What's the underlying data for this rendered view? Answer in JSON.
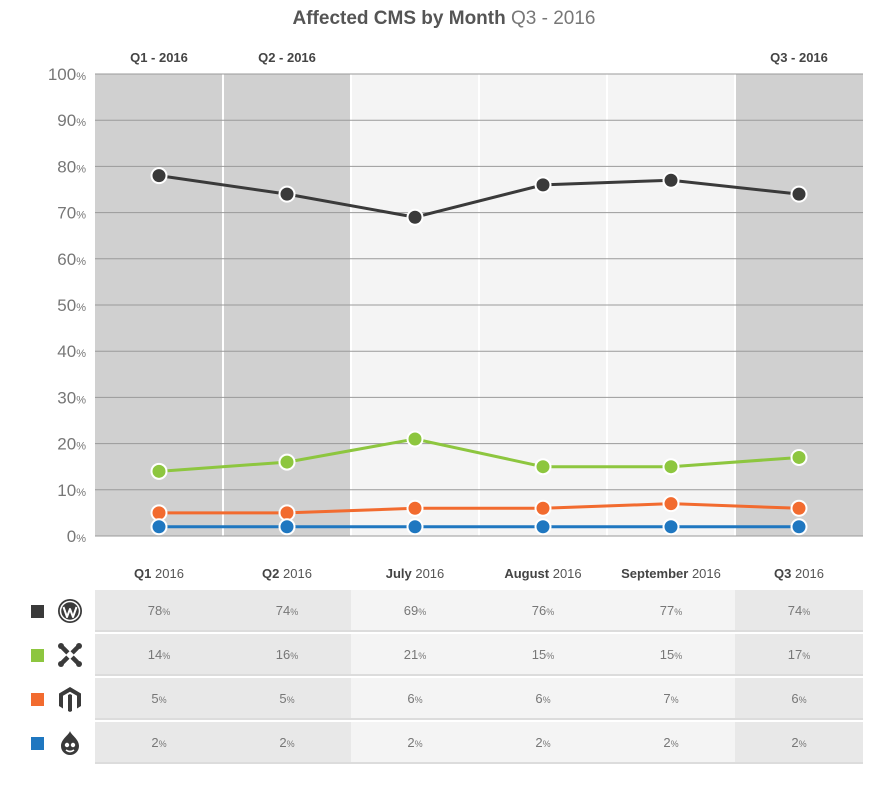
{
  "title": {
    "main": "Affected CMS by Month",
    "sub": "Q3 - 2016"
  },
  "chart_data": {
    "type": "line",
    "title": "Affected CMS by Month Q3 - 2016",
    "categories": [
      "Q1 - 2016",
      "Q2 - 2016",
      "July 2016",
      "August 2016",
      "September 2016",
      "Q3 - 2016"
    ],
    "band_labels": [
      "Q1 - 2016",
      "Q2 - 2016",
      "",
      "",
      "",
      "Q3 - 2016"
    ],
    "ylim": [
      0,
      100
    ],
    "y_ticks": [
      0,
      10,
      20,
      30,
      40,
      50,
      60,
      70,
      80,
      90,
      100
    ],
    "y_unit": "%",
    "grid": true,
    "series": [
      {
        "id": "wordpress",
        "color": "#3a3a3a",
        "icon": "wordpress-icon",
        "values": [
          78,
          74,
          69,
          76,
          77,
          74
        ]
      },
      {
        "id": "joomla",
        "color": "#8dc63f",
        "icon": "joomla-icon",
        "values": [
          14,
          16,
          21,
          15,
          15,
          17
        ]
      },
      {
        "id": "magento",
        "color": "#f26b2f",
        "icon": "magento-icon",
        "values": [
          5,
          5,
          6,
          6,
          7,
          6
        ]
      },
      {
        "id": "drupal",
        "color": "#1f77c0",
        "icon": "drupal-icon",
        "values": [
          2,
          2,
          2,
          2,
          2,
          2
        ]
      }
    ]
  },
  "table": {
    "headers": [
      {
        "bold": "Q1",
        "rest": " 2016"
      },
      {
        "bold": "Q2",
        "rest": " 2016"
      },
      {
        "bold": "July",
        "rest": " 2016"
      },
      {
        "bold": "August",
        "rest": " 2016"
      },
      {
        "bold": "September",
        "rest": " 2016"
      },
      {
        "bold": "Q3",
        "rest": " 2016"
      }
    ],
    "pct": "%"
  }
}
